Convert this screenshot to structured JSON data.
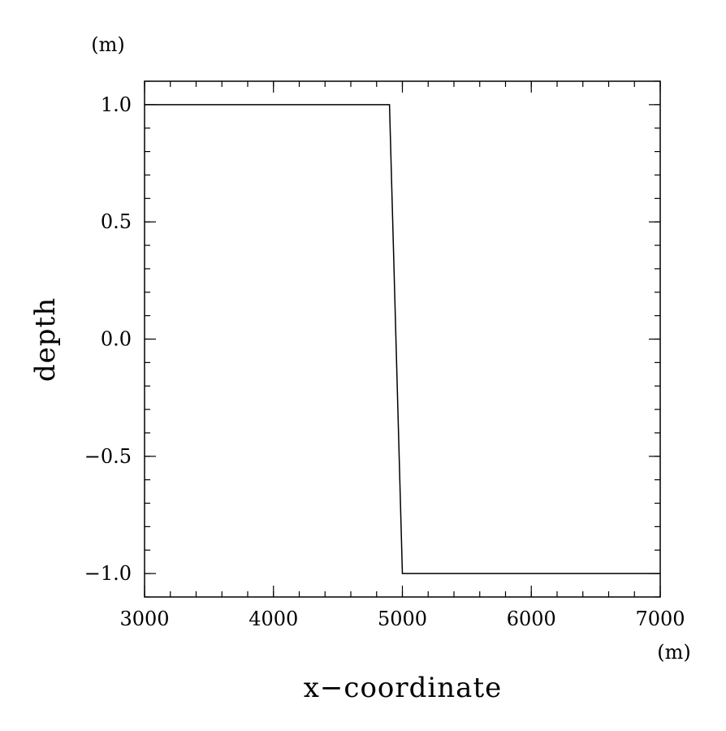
{
  "chart_data": {
    "type": "line",
    "title": "",
    "xlabel": "x−coordinate",
    "ylabel": "depth",
    "x_unit": "(m)",
    "y_unit": "(m)",
    "xlim": [
      3000,
      7000
    ],
    "ylim": [
      -1.1,
      1.1
    ],
    "x_ticks": [
      3000,
      4000,
      5000,
      6000,
      7000
    ],
    "x_tick_labels": [
      "3000",
      "4000",
      "5000",
      "6000",
      "7000"
    ],
    "x_minor_step": 200,
    "y_ticks": [
      1.0,
      0.5,
      0.0,
      -0.5,
      -1.0
    ],
    "y_tick_labels": [
      "1.0",
      "0.5",
      "0.0",
      "−0.5",
      "−1.0"
    ],
    "y_minor_step": 0.1,
    "grid": false,
    "series": [
      {
        "x": [
          3000,
          4900,
          5000,
          7000
        ],
        "y": [
          1.0,
          1.0,
          -1.0,
          -1.0
        ],
        "color": "#000000"
      }
    ]
  }
}
